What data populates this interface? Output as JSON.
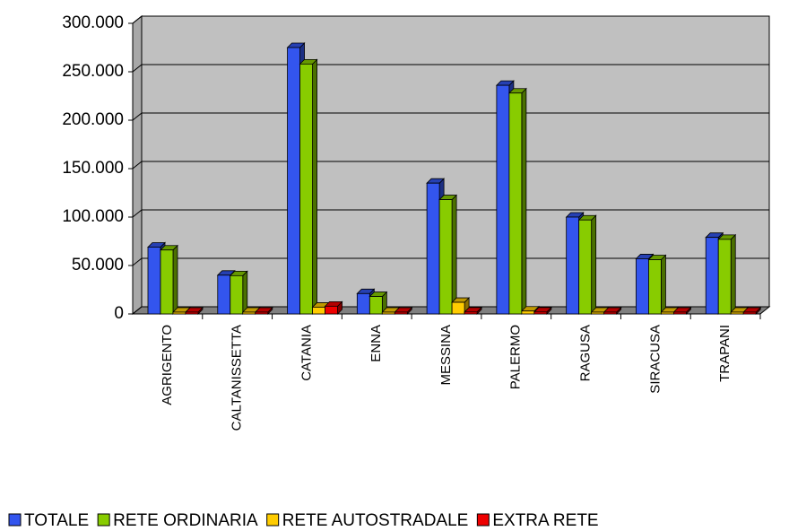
{
  "chart_data": {
    "type": "bar3d",
    "categories": [
      "AGRIGENTO",
      "CALTANISSETTA",
      "CATANIA",
      "ENNA",
      "MESSINA",
      "PALERMO",
      "RAGUSA",
      "SIRACUSA",
      "TRAPANI"
    ],
    "series": [
      {
        "name": "TOTALE",
        "color": "#3355ee",
        "values": [
          69000,
          40000,
          275000,
          21000,
          135000,
          236000,
          100000,
          57000,
          79000
        ]
      },
      {
        "name": "RETE ORDINARIA",
        "color": "#88cc00",
        "values": [
          66000,
          39500,
          258000,
          18000,
          118000,
          228000,
          97000,
          56000,
          77000
        ]
      },
      {
        "name": "RETE AUTOSTRADALE",
        "color": "#ffcc00",
        "values": [
          0,
          0,
          7000,
          1500,
          12000,
          3000,
          0,
          0,
          0
        ]
      },
      {
        "name": "EXTRA RETE",
        "color": "#ee0000",
        "values": [
          1000,
          500,
          8000,
          500,
          2000,
          2000,
          1000,
          500,
          1000
        ]
      }
    ],
    "ylim": [
      0,
      300000
    ],
    "yticks": [
      0,
      {
        "value": 50000,
        "label": "50.000"
      },
      {
        "value": 100000,
        "label": "100.000"
      },
      {
        "value": 150000,
        "label": "150.000"
      },
      {
        "value": 200000,
        "label": "200.000"
      },
      {
        "value": 250000,
        "label": "250.000"
      },
      {
        "value": 300000,
        "label": "300.000"
      }
    ],
    "grid": true
  }
}
